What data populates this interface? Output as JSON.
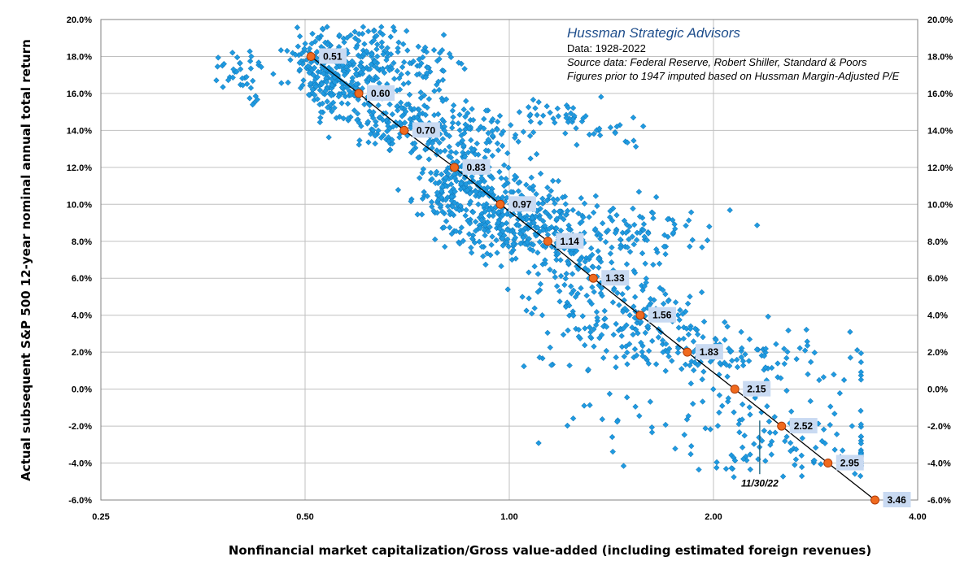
{
  "annotations": {
    "title": "Hussman Strategic Advisors",
    "line1": "Data: 1928-2022",
    "line2": "Source data: Federal Reserve, Robert Shiller, Standard & Poors",
    "line3": "Figures prior to 1947 imputed based on Hussman Margin-Adjusted P/E",
    "date_marker": "11/30/22",
    "date_marker_x": 2.34
  },
  "colors": {
    "scatter": "#1f9ae0",
    "fit_point": "#f06a1e",
    "label_box": "#c9daf2"
  },
  "chart_data": {
    "type": "scatter",
    "title": "",
    "xlabel": "Nonfinancial market capitalization/Gross value-added (including estimated foreign revenues)",
    "ylabel": "Actual subsequent S&P 500 12-year nominal annual total return",
    "x_scale": "log2",
    "xlim": [
      0.25,
      4.0
    ],
    "ylim": [
      -6.0,
      20.0
    ],
    "x_ticks": [
      "0.25",
      "0.50",
      "1.00",
      "2.00",
      "4.00"
    ],
    "y_ticks": [
      "-6.0%",
      "-4.0%",
      "-2.0%",
      "0.0%",
      "2.0%",
      "4.0%",
      "6.0%",
      "8.0%",
      "10.0%",
      "12.0%",
      "14.0%",
      "16.0%",
      "18.0%",
      "20.0%"
    ],
    "grid": true,
    "fit_series": {
      "x": [
        0.51,
        0.6,
        0.7,
        0.83,
        0.97,
        1.14,
        1.33,
        1.56,
        1.83,
        2.15,
        2.52,
        2.95,
        3.46
      ],
      "y": [
        18,
        16,
        14,
        12,
        10,
        8,
        6,
        4,
        2,
        0,
        -2,
        -4,
        -6
      ],
      "labels": [
        "0.51",
        "0.60",
        "0.70",
        "0.83",
        "0.97",
        "1.14",
        "1.33",
        "1.56",
        "1.83",
        "2.15",
        "2.52",
        "2.95",
        "3.46"
      ]
    },
    "scatter_clusters": [
      {
        "x": 0.52,
        "y": 17.5,
        "sx": 0.03,
        "sy": 0.9,
        "n": 120
      },
      {
        "x": 0.58,
        "y": 16.4,
        "sx": 0.04,
        "sy": 1.2,
        "n": 160
      },
      {
        "x": 0.63,
        "y": 17.8,
        "sx": 0.03,
        "sy": 1.0,
        "n": 80
      },
      {
        "x": 0.4,
        "y": 17.3,
        "sx": 0.03,
        "sy": 0.5,
        "n": 30
      },
      {
        "x": 0.42,
        "y": 16.0,
        "sx": 0.012,
        "sy": 0.4,
        "n": 8
      },
      {
        "x": 0.75,
        "y": 16.8,
        "sx": 0.04,
        "sy": 1.2,
        "n": 70
      },
      {
        "x": 0.7,
        "y": 14.3,
        "sx": 0.04,
        "sy": 0.8,
        "n": 90
      },
      {
        "x": 0.82,
        "y": 13.6,
        "sx": 0.05,
        "sy": 0.9,
        "n": 60
      },
      {
        "x": 0.95,
        "y": 13.8,
        "sx": 0.05,
        "sy": 0.8,
        "n": 40
      },
      {
        "x": 1.2,
        "y": 14.8,
        "sx": 0.06,
        "sy": 0.6,
        "n": 40
      },
      {
        "x": 1.4,
        "y": 14.0,
        "sx": 0.04,
        "sy": 0.4,
        "n": 15
      },
      {
        "x": 0.85,
        "y": 11.5,
        "sx": 0.05,
        "sy": 0.8,
        "n": 90
      },
      {
        "x": 0.97,
        "y": 10.0,
        "sx": 0.07,
        "sy": 1.0,
        "n": 160
      },
      {
        "x": 0.8,
        "y": 10.5,
        "sx": 0.04,
        "sy": 0.6,
        "n": 50
      },
      {
        "x": 1.1,
        "y": 8.7,
        "sx": 0.07,
        "sy": 1.0,
        "n": 150
      },
      {
        "x": 0.9,
        "y": 8.5,
        "sx": 0.05,
        "sy": 0.7,
        "n": 40
      },
      {
        "x": 1.3,
        "y": 6.5,
        "sx": 0.08,
        "sy": 1.2,
        "n": 120
      },
      {
        "x": 1.55,
        "y": 8.8,
        "sx": 0.1,
        "sy": 0.8,
        "n": 80
      },
      {
        "x": 1.55,
        "y": 4.5,
        "sx": 0.08,
        "sy": 0.8,
        "n": 60
      },
      {
        "x": 1.4,
        "y": 3.2,
        "sx": 0.08,
        "sy": 0.7,
        "n": 40
      },
      {
        "x": 1.8,
        "y": 2.2,
        "sx": 0.15,
        "sy": 0.8,
        "n": 90
      },
      {
        "x": 2.2,
        "y": 1.5,
        "sx": 0.15,
        "sy": 0.8,
        "n": 70
      },
      {
        "x": 2.15,
        "y": -1.5,
        "sx": 0.16,
        "sy": 0.7,
        "n": 60
      },
      {
        "x": 2.5,
        "y": -3.2,
        "sx": 0.2,
        "sy": 0.5,
        "n": 50
      },
      {
        "x": 2.85,
        "y": -4.0,
        "sx": 0.15,
        "sy": 0.4,
        "n": 25
      }
    ]
  }
}
